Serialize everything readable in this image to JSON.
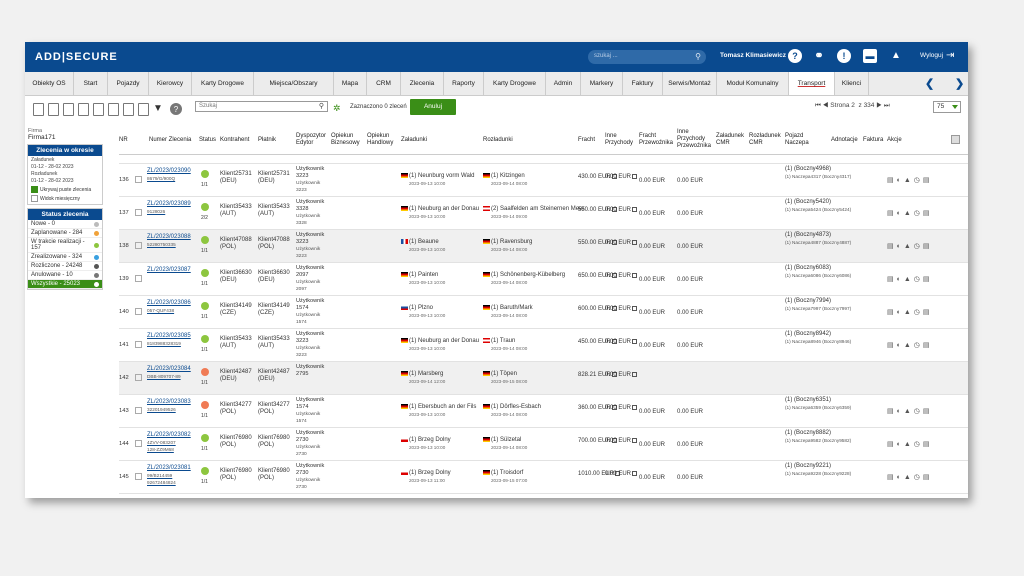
{
  "brand": "ADD|SECURE",
  "top": {
    "search_placeholder": "szukaj ...",
    "user": "Tomasz Klimasiewicz",
    "logout": "Wyloguj"
  },
  "nav": [
    "Obiekty OS",
    "Start",
    "Pojazdy",
    "Kierowcy",
    "Karty Drogowe",
    "Miejsca/Obszary",
    "Mapa",
    "CRM",
    "Zlecenia",
    "Raporty",
    "Karty Drogowe",
    "Admin",
    "Markery",
    "Faktury",
    "Serwis/Montaż",
    "Moduł Komunalny",
    "Transport",
    "Klienci"
  ],
  "toolbar": {
    "search_placeholder": "Szukaj",
    "selected": "Zaznaczono 0 zleceń",
    "cancel": "Anuluj",
    "page_label": "Strona",
    "page": "2",
    "of": "z 334",
    "per_page": "75"
  },
  "side": {
    "firma_label": "Firma",
    "firma": "Firma171",
    "orders_title": "Zlecenia w okresie",
    "zal_label": "Załadunek",
    "zal_range": "01-12 - 28-02 2023",
    "roz_label": "Rozładunek",
    "roz_range": "01-12 - 28-02 2023",
    "empty_cb": "Ukrywaj puste zlecenia",
    "month_cb": "Widok miesięczny",
    "status_title": "Status zlecenia",
    "statuses": [
      {
        "label": "Nowe - 0",
        "color": "#bbbbbb"
      },
      {
        "label": "Zaplanowane - 284",
        "color": "#f0a23a"
      },
      {
        "label": "W trakcie realizacji - 157",
        "color": "#8dc63f"
      },
      {
        "label": "Zrealizowane - 324",
        "color": "#3aa0e0"
      },
      {
        "label": "Rozliczone - 24248",
        "color": "#555555"
      },
      {
        "label": "Anulowane - 10",
        "color": "#777777"
      },
      {
        "label": "Wszystkie - 25023",
        "color": "#ffffff"
      }
    ]
  },
  "headers": {
    "nr": "NR",
    "numer": "Numer Zlecenia",
    "status": "Status",
    "kontrahent": "Kontrahent",
    "platnik": "Płatnik",
    "dysp": "Dyspozytor Edytor",
    "opb": "Opiekun Biznesowy",
    "oph": "Opiekun Handlowy",
    "zal": "Załadunki",
    "roz": "Rozładunki",
    "fracht": "Fracht",
    "ip": "Inne Przychody",
    "fp": "Fracht Przewoźnika",
    "ipp": "Inne Przychody Przewoźnika",
    "zc": "Załadunek CMR",
    "rc": "Rozładunek CMR",
    "poj": "Pojazd Naczepa",
    "adn": "Adnotacje",
    "fak": "Faktura",
    "akc": "Akcje"
  },
  "rows": [
    {
      "nr": "136",
      "num": "ZL/2023/023090",
      "sub1": "8679/G/900Q",
      "sub2": "",
      "st": "#8dc63f",
      "q": "1/1",
      "kon": "Klient25731 (DEU)",
      "pla": "Klient25731 (DEU)",
      "dys": "Użytkownik 3223",
      "dys2": "Użytkownik 3223",
      "zf": "de",
      "zal": "(1) Neunburg vorm Wald",
      "zd": "2023-09-13 10:00",
      "rf": "de",
      "roz": "(1) Kitzingen",
      "rd": "2023-09-14 08:00",
      "fr": "430.00 EUR",
      "ip": "0.00 EUR",
      "fp": "0.00 EUR",
      "ipp": "0.00 EUR",
      "poj": "(1) (Boczny4968)",
      "poj2": "(1) Naczepa4317 (Boczny4317)"
    },
    {
      "nr": "137",
      "num": "ZL/2023/023089",
      "sub1": "9128026",
      "sub2": "",
      "st": "#8dc63f",
      "q": "2/2",
      "kon": "Klient35433 (AUT)",
      "pla": "Klient35433 (AUT)",
      "dys": "Użytkownik 3328",
      "dys2": "Użytkownik 3328",
      "zf": "de",
      "zal": "(1) Neuburg an der Donau",
      "zd": "2023-09-13 10:00",
      "rf": "at",
      "roz": "(2) Saalfelden am Steinernen Meer",
      "rd": "2023-09-14 09:00",
      "fr": "550.00 EUR",
      "ip": "0.00 EUR",
      "fp": "0.00 EUR",
      "ipp": "0.00 EUR",
      "poj": "(1) (Boczny5420)",
      "poj2": "(1) Naczepa5424 (Boczny5424)"
    },
    {
      "nr": "138",
      "num": "ZL/2023/023088",
      "sub1": "52280750335",
      "sub2": "",
      "st": "#8dc63f",
      "q": "1/1",
      "kon": "Klient47088 (POL)",
      "pla": "Klient47088 (POL)",
      "dys": "Użytkownik 3223",
      "dys2": "Użytkownik 3223",
      "zf": "fr",
      "zal": "(1) Beaune",
      "zd": "2023-09-13 10:00",
      "rf": "de",
      "roz": "(1) Ravensburg",
      "rd": "2023-09-14 08:00",
      "fr": "550.00 EUR",
      "ip": "0.00 EUR",
      "fp": "0.00 EUR",
      "ipp": "0.00 EUR",
      "poj": "(1) (Boczny4873)",
      "poj2": "(1) Naczepa4887 (Boczny4887)"
    },
    {
      "nr": "139",
      "num": "ZL/2023/023087",
      "sub1": "",
      "sub2": "",
      "st": "#8dc63f",
      "q": "1/1",
      "kon": "Klient36630 (DEU)",
      "pla": "Klient36630 (DEU)",
      "dys": "Użytkownik 2097",
      "dys2": "Użytkownik 2097",
      "zf": "de",
      "zal": "(1) Painten",
      "zd": "2023-09-13 10:00",
      "rf": "de",
      "roz": "(1) Schönenberg-Kübelberg",
      "rd": "2023-09-14 08:00",
      "fr": "650.00 EUR",
      "ip": "0.00 EUR",
      "fp": "0.00 EUR",
      "ipp": "0.00 EUR",
      "poj": "(1) (Boczny6083)",
      "poj2": "(1) Naczepa6086 (Boczny6086)"
    },
    {
      "nr": "140",
      "num": "ZL/2023/023086",
      "sub1": "057-QUF438",
      "sub2": "",
      "st": "#8dc63f",
      "q": "1/1",
      "kon": "Klient34149 (CZE)",
      "pla": "Klient34149 (CZE)",
      "dys": "Użytkownik 1574",
      "dys2": "Użytkownik 1574",
      "zf": "cz",
      "zal": "(1) Plzno",
      "zd": "2023-09-13 10:00",
      "rf": "de",
      "roz": "(1) Baruth/Mark",
      "rd": "2023-09-14 08:00",
      "fr": "600.00 EUR",
      "ip": "0.00 EUR",
      "fp": "0.00 EUR",
      "ipp": "0.00 EUR",
      "poj": "(1) (Boczny7994)",
      "poj2": "(1) Naczepa7997 (Boczny7997)"
    },
    {
      "nr": "141",
      "num": "ZL/2023/023085",
      "sub1": "8183988328319",
      "sub2": "",
      "st": "#8dc63f",
      "q": "1/1",
      "kon": "Klient35433 (AUT)",
      "pla": "Klient35433 (AUT)",
      "dys": "Użytkownik 3223",
      "dys2": "Użytkownik 3223",
      "zf": "de",
      "zal": "(1) Neuburg an der Donau",
      "zd": "2023-09-13 10:00",
      "rf": "at",
      "roz": "(1) Traun",
      "rd": "2023-09-14 08:00",
      "fr": "450.00 EUR",
      "ip": "0.00 EUR",
      "fp": "0.00 EUR",
      "ipp": "0.00 EUR",
      "poj": "(1) (Boczny8942)",
      "poj2": "(1) Naczepa8946 (Boczny8946)"
    },
    {
      "nr": "142",
      "num": "ZL/2023/023084",
      "sub1": "DBB-809707-89",
      "sub2": "",
      "st": "#f07b55",
      "q": "1/1",
      "kon": "Klient42487 (DEU)",
      "pla": "Klient42487 (DEU)",
      "dys": "Użytkownik 2795",
      "dys2": "",
      "zf": "de",
      "zal": "(1) Marsberg",
      "zd": "2023-09-14 12:00",
      "rf": "de",
      "roz": "(1) Töpen",
      "rd": "2023-09-15 08:00",
      "fr": "828.21 EUR",
      "ip": "0.00 EUR",
      "fp": "",
      "ipp": "",
      "poj": "",
      "poj2": ""
    },
    {
      "nr": "143",
      "num": "ZL/2023/023083",
      "sub1": "32201949526",
      "sub2": "",
      "st": "#f07b55",
      "q": "1/1",
      "kon": "Klient34277 (POL)",
      "pla": "Klient34277 (POL)",
      "dys": "Użytkownik 1574",
      "dys2": "Użytkownik 1574",
      "zf": "de",
      "zal": "(1) Ebersbuch an der Fils",
      "zd": "2023-09-13 10:00",
      "rf": "de",
      "roz": "(1) Dörfles-Esbach",
      "rd": "2023-09-14 08:00",
      "fr": "360.00 EUR",
      "ip": "0.00 EUR",
      "fp": "0.00 EUR",
      "ipp": "0.00 EUR",
      "poj": "(1) (Boczny6351)",
      "poj2": "(1) Naczepa6359 (Boczny6359)"
    },
    {
      "nr": "144",
      "num": "ZL/2023/023082",
      "sub1": "4ZVV-083207",
      "sub2": "128-ZZ9M68",
      "st": "#8dc63f",
      "q": "1/1",
      "kon": "Klient76980 (POL)",
      "pla": "Klient76980 (POL)",
      "dys": "Użytkownik 2730",
      "dys2": "Użytkownik 2730",
      "zf": "pl",
      "zal": "(1) Brzeg Dolny",
      "zd": "2023-09-13 10:00",
      "rf": "de",
      "roz": "(1) Sülzetal",
      "rd": "2023-09-14 08:00",
      "fr": "700.00 EUR",
      "ip": "0.00 EUR",
      "fp": "0.00 EUR",
      "ipp": "0.00 EUR",
      "poj": "(1) (Boczny8882)",
      "poj2": "(1) Naczepa9582 (Boczny9582)"
    },
    {
      "nr": "145",
      "num": "ZL/2023/023081",
      "sub1": "99/B214459",
      "sub2": "92672484824",
      "st": "#8dc63f",
      "q": "1/1",
      "kon": "Klient76980 (POL)",
      "pla": "Klient76980 (POL)",
      "dys": "Użytkownik 2730",
      "dys2": "Użytkownik 2730",
      "zf": "pl",
      "zal": "(1) Brzeg Dolny",
      "zd": "2023-09-13 11:00",
      "rf": "de",
      "roz": "(1) Troisdorf",
      "rd": "2023-09-15 07:00",
      "fr": "1010.00 EUR",
      "ip": "0.00 EUR",
      "fp": "0.00 EUR",
      "ipp": "0.00 EUR",
      "poj": "(1) (Boczny9221)",
      "poj2": "(1) Naczepa9228 (Boczny9228)"
    }
  ]
}
